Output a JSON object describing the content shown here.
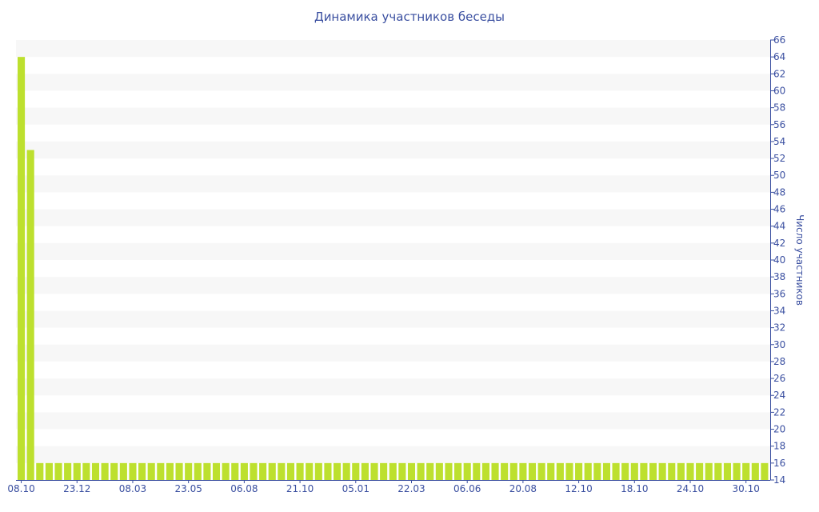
{
  "chart_data": {
    "type": "bar",
    "title": "Динамика участников беседы",
    "ylabel": "Число участников",
    "xlabel": "",
    "ylim": [
      14,
      66
    ],
    "y_ticks": [
      14,
      16,
      18,
      20,
      22,
      24,
      26,
      28,
      30,
      32,
      34,
      36,
      38,
      40,
      42,
      44,
      46,
      48,
      50,
      52,
      54,
      56,
      58,
      60,
      62,
      64,
      66
    ],
    "y_axis_side": "right",
    "x_tick_labels": [
      "08.10",
      "23.12",
      "08.03",
      "23.05",
      "06.08",
      "21.10",
      "05.01",
      "22.03",
      "06.06",
      "20.08",
      "12.10",
      "18.10",
      "24.10",
      "30.10"
    ],
    "x_tick_every": 6,
    "values": [
      64,
      53,
      16,
      16,
      16,
      16,
      16,
      16,
      16,
      16,
      16,
      16,
      16,
      16,
      16,
      16,
      16,
      16,
      16,
      16,
      16,
      16,
      16,
      16,
      16,
      16,
      16,
      16,
      16,
      16,
      16,
      16,
      16,
      16,
      16,
      16,
      16,
      16,
      16,
      16,
      16,
      16,
      16,
      16,
      16,
      16,
      16,
      16,
      16,
      16,
      16,
      16,
      16,
      16,
      16,
      16,
      16,
      16,
      16,
      16,
      16,
      16,
      16,
      16,
      16,
      16,
      16,
      16,
      16,
      16,
      16,
      16,
      16,
      16,
      16,
      16,
      16,
      16,
      16,
      16,
      16
    ],
    "grid": "alternating horizontal bands",
    "colors": {
      "bar": "#bde02e",
      "axis": "#3a4fa0",
      "band": "#f7f7f7"
    }
  }
}
